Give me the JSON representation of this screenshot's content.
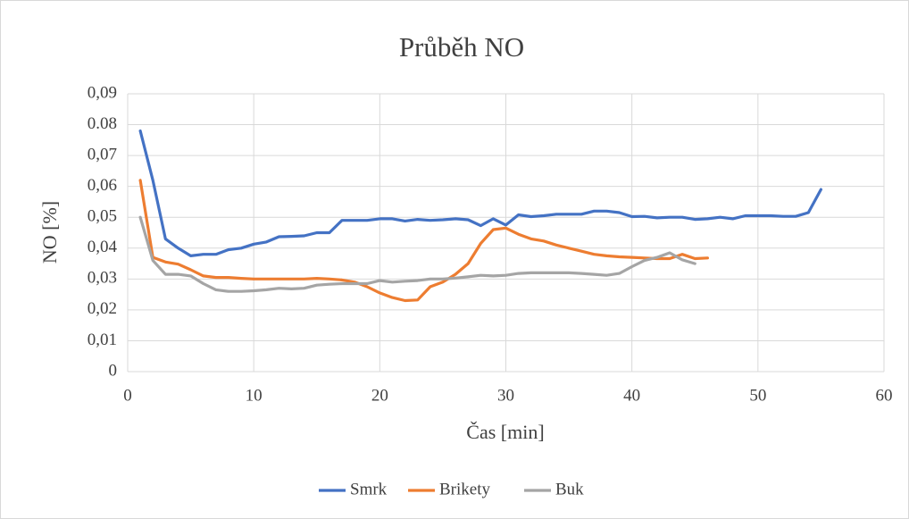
{
  "chart_data": {
    "type": "line",
    "title": "Průběh NO",
    "x_label": "Čas [min]",
    "y_label": "NO [%]",
    "xlim": [
      0,
      60
    ],
    "xticks": [
      0,
      10,
      20,
      30,
      40,
      50,
      60
    ],
    "ylim": [
      0,
      0.09
    ],
    "yticks": [
      0,
      {
        "value": 0.01,
        "label": "0,01"
      },
      {
        "value": 0.02,
        "label": "0,02"
      },
      {
        "value": 0.03,
        "label": "0,03"
      },
      {
        "value": 0.04,
        "label": "0,04"
      },
      {
        "value": 0.05,
        "label": "0,05"
      },
      {
        "value": 0.06,
        "label": "0,06"
      },
      {
        "value": 0.07,
        "label": "0,07"
      },
      {
        "value": 0.08,
        "label": "0.08"
      },
      {
        "value": 0.09,
        "label": "0,09"
      }
    ],
    "grid": true,
    "legend": "bottom",
    "series": [
      {
        "name": "Smrk",
        "color": "#4472c4",
        "x": [
          1,
          2,
          3,
          4,
          5,
          6,
          7,
          8,
          9,
          10,
          11,
          12,
          13,
          14,
          15,
          16,
          17,
          18,
          19,
          20,
          21,
          22,
          23,
          24,
          25,
          26,
          27,
          28,
          29,
          30,
          31,
          32,
          33,
          34,
          35,
          36,
          37,
          38,
          39,
          40,
          41,
          42,
          43,
          44,
          45,
          46,
          47,
          48,
          49,
          50,
          51,
          52,
          53,
          54,
          55
        ],
        "values": [
          0.078,
          0.062,
          0.043,
          0.04,
          0.0375,
          0.038,
          0.038,
          0.0395,
          0.04,
          0.0413,
          0.042,
          0.0437,
          0.0438,
          0.044,
          0.045,
          0.045,
          0.049,
          0.049,
          0.049,
          0.0495,
          0.0495,
          0.0488,
          0.0493,
          0.049,
          0.0492,
          0.0495,
          0.0492,
          0.0473,
          0.0495,
          0.0475,
          0.0508,
          0.0502,
          0.0505,
          0.051,
          0.051,
          0.051,
          0.052,
          0.052,
          0.0515,
          0.0502,
          0.0503,
          0.0498,
          0.05,
          0.05,
          0.0493,
          0.0495,
          0.05,
          0.0495,
          0.0505,
          0.0505,
          0.0505,
          0.0503,
          0.0503,
          0.0515,
          0.059
        ]
      },
      {
        "name": "Brikety",
        "color": "#ed7d31",
        "x": [
          1,
          2,
          3,
          4,
          5,
          6,
          7,
          8,
          9,
          10,
          11,
          12,
          13,
          14,
          15,
          16,
          17,
          18,
          19,
          20,
          21,
          22,
          23,
          24,
          25,
          26,
          27,
          28,
          29,
          30,
          31,
          32,
          33,
          34,
          35,
          36,
          37,
          38,
          39,
          40,
          41,
          42,
          43,
          44,
          45,
          46
        ],
        "values": [
          0.062,
          0.037,
          0.0355,
          0.0348,
          0.033,
          0.031,
          0.0305,
          0.0305,
          0.0302,
          0.03,
          0.03,
          0.03,
          0.03,
          0.03,
          0.0302,
          0.03,
          0.0297,
          0.029,
          0.0275,
          0.0255,
          0.024,
          0.023,
          0.0232,
          0.0275,
          0.029,
          0.0315,
          0.035,
          0.0415,
          0.046,
          0.0465,
          0.0445,
          0.043,
          0.0423,
          0.041,
          0.04,
          0.039,
          0.038,
          0.0375,
          0.0372,
          0.037,
          0.0368,
          0.0366,
          0.0366,
          0.038,
          0.0366,
          0.0368
        ]
      },
      {
        "name": "Buk",
        "color": "#a5a5a5",
        "x": [
          1,
          2,
          3,
          4,
          5,
          6,
          7,
          8,
          9,
          10,
          11,
          12,
          13,
          14,
          15,
          16,
          17,
          18,
          19,
          20,
          21,
          22,
          23,
          24,
          25,
          26,
          27,
          28,
          29,
          30,
          31,
          32,
          33,
          34,
          35,
          36,
          37,
          38,
          39,
          40,
          41,
          42,
          43,
          44,
          45
        ],
        "values": [
          0.05,
          0.036,
          0.0315,
          0.0315,
          0.031,
          0.0285,
          0.0265,
          0.026,
          0.026,
          0.0262,
          0.0265,
          0.027,
          0.0268,
          0.027,
          0.028,
          0.0283,
          0.0285,
          0.0285,
          0.0285,
          0.0295,
          0.029,
          0.0293,
          0.0295,
          0.03,
          0.03,
          0.0303,
          0.0307,
          0.0312,
          0.031,
          0.0312,
          0.0318,
          0.032,
          0.032,
          0.032,
          0.032,
          0.0318,
          0.0315,
          0.0312,
          0.0318,
          0.034,
          0.036,
          0.037,
          0.0385,
          0.0362,
          0.035
        ]
      }
    ]
  }
}
